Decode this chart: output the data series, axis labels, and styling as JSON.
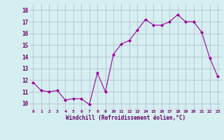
{
  "x": [
    0,
    1,
    2,
    3,
    4,
    5,
    6,
    7,
    8,
    9,
    10,
    11,
    12,
    13,
    14,
    15,
    16,
    17,
    18,
    19,
    20,
    21,
    22,
    23
  ],
  "y": [
    11.8,
    11.1,
    11.0,
    11.1,
    10.3,
    10.4,
    10.4,
    9.9,
    12.6,
    11.0,
    14.2,
    15.1,
    15.4,
    16.3,
    17.2,
    16.7,
    16.7,
    17.0,
    17.6,
    17.0,
    17.0,
    16.1,
    13.9,
    12.3
  ],
  "line_color": "#990099",
  "marker": "D",
  "marker_size": 2,
  "bg_color": "#d5eef0",
  "grid_color": "#b0b8cc",
  "xlabel": "Windchill (Refroidissement éolien,°C)",
  "xlabel_color": "#660066",
  "tick_color": "#660066",
  "ylim": [
    9.5,
    18.5
  ],
  "xlim": [
    -0.5,
    23.5
  ],
  "yticks": [
    10,
    11,
    12,
    13,
    14,
    15,
    16,
    17,
    18
  ],
  "ytick_labels": [
    "10",
    "11",
    "12",
    "13",
    "14",
    "15",
    "16",
    "17",
    "18"
  ],
  "xtick_labels": [
    "0",
    "1",
    "2",
    "3",
    "4",
    "5",
    "6",
    "7",
    "8",
    "9",
    "10",
    "11",
    "12",
    "13",
    "14",
    "15",
    "16",
    "17",
    "18",
    "19",
    "20",
    "21",
    "22",
    "23"
  ]
}
